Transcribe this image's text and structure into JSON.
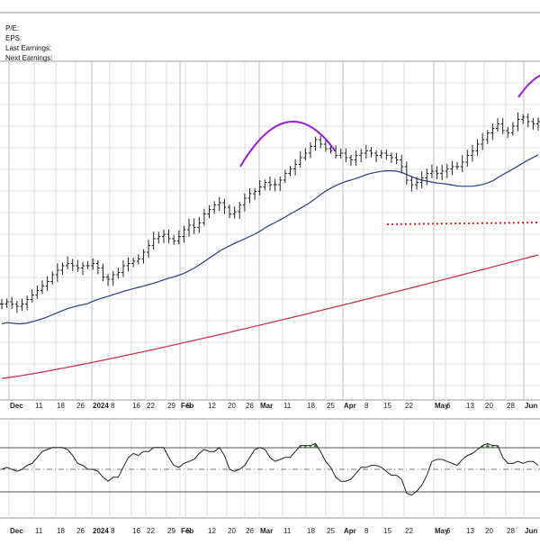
{
  "info_panel": {
    "pe_label": "P/E:",
    "eps_label": "EPS:",
    "last_earnings_label": "Last Earnings:",
    "next_earnings_label": "Next Earnings:"
  },
  "chart_data": {
    "type": "ohlc",
    "price_axis_labels": "none visible",
    "x_tick_labels": [
      "Dec",
      "11",
      "18",
      "26",
      "2024",
      "8",
      "16",
      "22",
      "29",
      "Feb",
      "5",
      "12",
      "20",
      "26",
      "Mar",
      "11",
      "18",
      "25",
      "Apr",
      "8",
      "15",
      "22",
      "May",
      "6",
      "13",
      "20",
      "28",
      "Jun"
    ],
    "month_labels": [
      "Dec",
      "2024",
      "Feb",
      "Mar",
      "Apr",
      "May",
      "Jun"
    ],
    "close_relative": [
      0.13,
      0.14,
      0.13,
      0.12,
      0.13,
      0.15,
      0.17,
      0.19,
      0.21,
      0.23,
      0.26,
      0.28,
      0.3,
      0.31,
      0.3,
      0.29,
      0.3,
      0.3,
      0.31,
      0.29,
      0.25,
      0.24,
      0.26,
      0.27,
      0.3,
      0.31,
      0.32,
      0.33,
      0.36,
      0.39,
      0.42,
      0.43,
      0.44,
      0.42,
      0.41,
      0.43,
      0.46,
      0.48,
      0.47,
      0.49,
      0.53,
      0.55,
      0.57,
      0.58,
      0.56,
      0.53,
      0.54,
      0.57,
      0.6,
      0.62,
      0.63,
      0.65,
      0.67,
      0.66,
      0.66,
      0.68,
      0.71,
      0.73,
      0.75,
      0.78,
      0.8,
      0.83,
      0.86,
      0.84,
      0.82,
      0.81,
      0.79,
      0.8,
      0.78,
      0.77,
      0.79,
      0.8,
      0.81,
      0.8,
      0.79,
      0.8,
      0.79,
      0.78,
      0.77,
      0.74,
      0.68,
      0.66,
      0.67,
      0.69,
      0.71,
      0.72,
      0.71,
      0.72,
      0.73,
      0.74,
      0.74,
      0.76,
      0.79,
      0.81,
      0.84,
      0.86,
      0.89,
      0.91,
      0.93,
      0.9,
      0.89,
      0.92,
      0.95,
      0.96,
      0.94,
      0.93,
      0.94
    ],
    "moving_average_short": {
      "color": "#2b3990",
      "style": "solid"
    },
    "moving_average_long": {
      "color": "#c9283e",
      "style": "solid"
    },
    "support_line": {
      "color": "#d9262c",
      "style": "dotted"
    },
    "arc_annotations": {
      "color": "#9b1fd6",
      "count": 2
    },
    "indicator_panel": {
      "type": "oscillator",
      "fill_color_above": "#4f7d4a",
      "reference_lines": [
        "upper",
        "middle-dashed",
        "lower"
      ]
    },
    "grid": true
  },
  "colors": {
    "grid": "#dcdcdc",
    "bars": "#222222",
    "frame": "#9a9a9a"
  }
}
